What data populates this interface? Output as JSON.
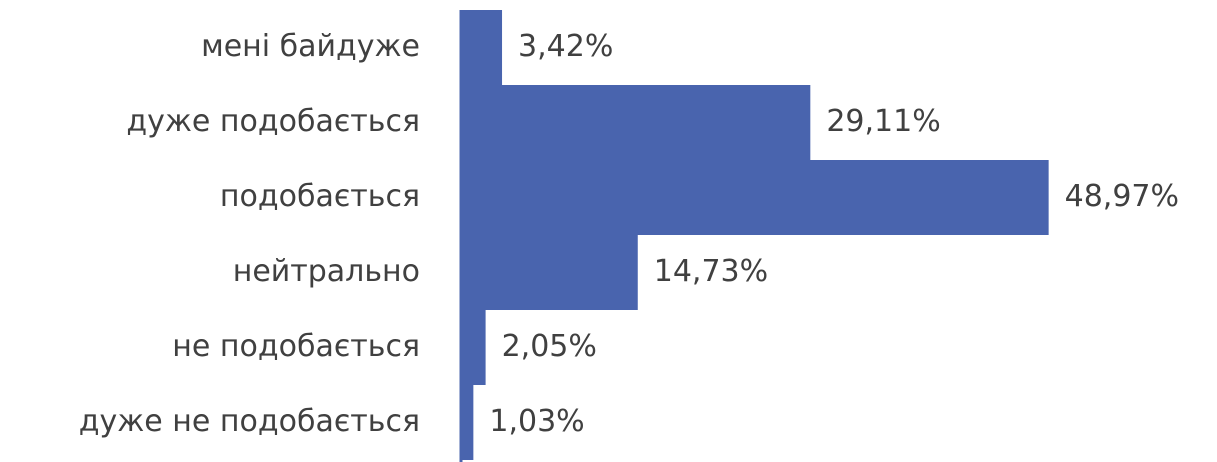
{
  "chart_data": {
    "type": "bar",
    "orientation": "horizontal",
    "categories": [
      "мені байдуже",
      "дуже подобається",
      "подобається",
      "нейтрально",
      "не подобається",
      "дуже не подобається"
    ],
    "values": [
      3.42,
      29.11,
      48.97,
      14.73,
      2.05,
      1.03
    ],
    "value_labels": [
      "3,42%",
      "29,11%",
      "48,97%",
      "14,73%",
      "2,05%",
      "1,03%"
    ],
    "unit": "%",
    "bar_color": "#4964ae",
    "axis_color": "#4964ae",
    "text_color": "#404040",
    "gap_between_bars": 0,
    "grid": false,
    "legend": "none"
  }
}
